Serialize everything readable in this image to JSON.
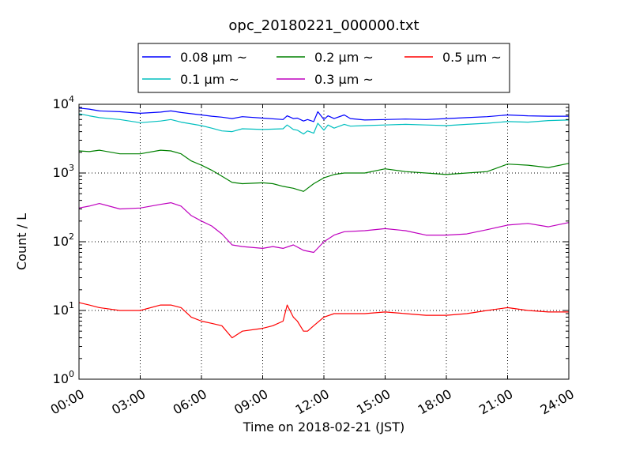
{
  "chart_data": {
    "type": "line",
    "title": "opc_20180221_000000.txt",
    "xlabel": "Time on 2018-02-21 (JST)",
    "ylabel": "Count / L",
    "x_unit": "hours",
    "xlim": [
      0,
      24
    ],
    "ylim": [
      1,
      10000
    ],
    "y_scale": "log",
    "grid": true,
    "legend_position": "top-center, above plot",
    "x_ticks": [
      0,
      3,
      6,
      9,
      12,
      15,
      18,
      21,
      24
    ],
    "x_tick_labels": [
      "00:00",
      "03:00",
      "06:00",
      "09:00",
      "12:00",
      "15:00",
      "18:00",
      "21:00",
      "24:00"
    ],
    "y_ticks": [
      1,
      10,
      100,
      1000,
      10000
    ],
    "y_tick_bases": [
      "10",
      "10",
      "10",
      "10",
      "10"
    ],
    "y_tick_exps": [
      "0",
      "1",
      "2",
      "3",
      "4"
    ],
    "series": [
      {
        "name": "0.08 μm ~",
        "color": "#0000ff",
        "x": [
          0,
          0.5,
          1,
          2,
          3,
          4,
          4.5,
          5,
          6,
          6.5,
          7,
          7.5,
          8,
          9,
          10,
          10.2,
          10.5,
          10.7,
          11,
          11.2,
          11.5,
          11.7,
          12,
          12.2,
          12.5,
          13,
          13.3,
          14,
          15,
          16,
          17,
          18,
          19,
          20,
          21,
          22,
          23,
          24
        ],
        "y": [
          8800,
          8500,
          8000,
          7800,
          7400,
          7700,
          8000,
          7600,
          7000,
          6700,
          6500,
          6200,
          6600,
          6300,
          6000,
          6800,
          6200,
          6300,
          5700,
          6000,
          5600,
          7800,
          6000,
          6800,
          6200,
          7000,
          6200,
          5900,
          6000,
          6100,
          6000,
          6200,
          6400,
          6600,
          7000,
          6800,
          6700,
          6700
        ]
      },
      {
        "name": "0.1 μm ~",
        "color": "#00bfbf",
        "x": [
          0,
          0.5,
          1,
          2,
          3,
          4,
          4.5,
          5,
          6,
          6.5,
          7,
          7.5,
          8,
          9,
          10,
          10.2,
          10.5,
          10.7,
          11,
          11.2,
          11.5,
          11.7,
          12,
          12.2,
          12.5,
          13,
          13.3,
          14,
          15,
          16,
          17,
          18,
          19,
          20,
          21,
          22,
          23,
          24
        ],
        "y": [
          7300,
          6800,
          6400,
          6000,
          5400,
          5700,
          6000,
          5500,
          4900,
          4500,
          4100,
          4000,
          4400,
          4300,
          4400,
          5000,
          4300,
          4200,
          3700,
          4100,
          3800,
          5300,
          4200,
          5000,
          4500,
          5100,
          4800,
          4900,
          5000,
          5100,
          5000,
          4900,
          5100,
          5300,
          5600,
          5500,
          5800,
          5900
        ]
      },
      {
        "name": "0.2 μm ~",
        "color": "#008000",
        "x": [
          0,
          0.5,
          1,
          2,
          3,
          4,
          4.5,
          5,
          5.5,
          6,
          6.5,
          7,
          7.5,
          8,
          9,
          9.5,
          10,
          10.5,
          11,
          11.5,
          12,
          12.5,
          13,
          14,
          15,
          16,
          17,
          18,
          19,
          20,
          21,
          22,
          23,
          24
        ],
        "y": [
          2100,
          2050,
          2150,
          1900,
          1900,
          2150,
          2100,
          1900,
          1500,
          1300,
          1100,
          900,
          730,
          700,
          720,
          700,
          640,
          600,
          540,
          700,
          850,
          950,
          1000,
          1000,
          1150,
          1050,
          1000,
          950,
          1000,
          1050,
          1350,
          1300,
          1200,
          1380
        ]
      },
      {
        "name": "0.3 μm ~",
        "color": "#bf00bf",
        "x": [
          0,
          0.5,
          1,
          2,
          3,
          4,
          4.5,
          5,
          5.5,
          6,
          6.5,
          7,
          7.5,
          8,
          9,
          9.5,
          10,
          10.5,
          11,
          11.5,
          12,
          12.5,
          13,
          14,
          15,
          16,
          17,
          18,
          19,
          20,
          21,
          22,
          23,
          24
        ],
        "y": [
          310,
          330,
          360,
          300,
          310,
          350,
          370,
          330,
          240,
          200,
          170,
          130,
          90,
          85,
          80,
          85,
          80,
          90,
          75,
          70,
          100,
          125,
          140,
          145,
          155,
          145,
          125,
          125,
          130,
          150,
          175,
          185,
          165,
          190
        ]
      },
      {
        "name": "0.5 μm ~",
        "color": "#ff0000",
        "x": [
          0,
          0.5,
          1,
          2,
          3,
          4,
          4.5,
          5,
          5.5,
          6,
          6.5,
          7,
          7.5,
          8,
          9,
          9.5,
          10,
          10.2,
          10.5,
          10.7,
          11,
          11.2,
          11.5,
          12,
          12.5,
          13,
          14,
          15,
          16,
          17,
          18,
          19,
          20,
          21,
          22,
          23,
          24
        ],
        "y": [
          13,
          12,
          11,
          10,
          10,
          12,
          12,
          11,
          8,
          7,
          6.5,
          6,
          4,
          5,
          5.5,
          6,
          7,
          12,
          8,
          7,
          5,
          5,
          6,
          8,
          9,
          9,
          9,
          9.5,
          9,
          8.5,
          8.5,
          9,
          10,
          11,
          10,
          9.5,
          9.5
        ]
      }
    ]
  }
}
